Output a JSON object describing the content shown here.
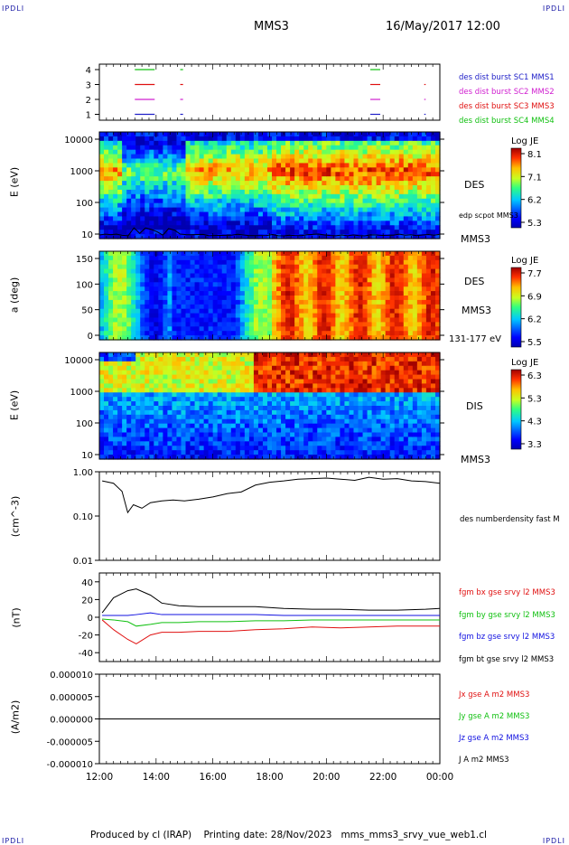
{
  "header": {
    "corner_label": "IPDLI",
    "spacecraft": "MMS3",
    "datetime": "16/May/2017 12:00"
  },
  "footer": {
    "produced_by": "Produced by cl (IRAP)",
    "printing_date": "Printing date: 28/Nov/2023",
    "filename": "mms_mms3_srvy_vue_web1.cl"
  },
  "colors": {
    "mms1": "#2020c8",
    "mms2": "#d020d0",
    "mms3": "#e01010",
    "mms4": "#10c010",
    "bx": "#e01010",
    "by": "#10c010",
    "bz": "#1010e0",
    "bt": "#000000"
  },
  "chart_data": [
    {
      "type": "scatter",
      "name_key": "burst",
      "yticks": [
        "4",
        "3",
        "2",
        "1"
      ],
      "legend": [
        "des dist burst SC1 MMS1",
        "des dist burst SC2 MMS2",
        "des dist burst SC3 MMS3",
        "des dist burst SC4 MMS4"
      ],
      "intervals": [
        {
          "sc": 4,
          "ranges": [
            [
              13.25,
              13.95
            ],
            [
              14.85,
              14.95
            ],
            [
              21.55,
              21.9
            ]
          ]
        },
        {
          "sc": 3,
          "ranges": [
            [
              13.25,
              13.95
            ],
            [
              14.85,
              14.95
            ],
            [
              21.55,
              21.9
            ],
            [
              23.45,
              23.5
            ]
          ]
        },
        {
          "sc": 2,
          "ranges": [
            [
              13.25,
              13.95
            ],
            [
              14.85,
              14.95
            ],
            [
              21.55,
              21.9
            ],
            [
              23.45,
              23.5
            ]
          ]
        },
        {
          "sc": 1,
          "ranges": [
            [
              13.25,
              13.95
            ],
            [
              14.85,
              14.95
            ],
            [
              21.55,
              21.9
            ],
            [
              23.45,
              23.5
            ]
          ]
        }
      ]
    },
    {
      "type": "heatmap",
      "ylabel": "E (eV)",
      "yticks": [
        "10000",
        "1000",
        "100",
        "10"
      ],
      "label": "DES",
      "sublabel": "edp scpot MMS3",
      "bottom_label": "MMS3",
      "colorbar": {
        "title": "Log JE",
        "ticks": [
          "8.1",
          "7.1",
          "6.2",
          "5.3"
        ]
      }
    },
    {
      "type": "heatmap",
      "ylabel": "a (deg)",
      "yticks": [
        "150",
        "100",
        "50",
        "0"
      ],
      "label": "DES",
      "sublabel": "MMS3",
      "bottom_label": "131-177 eV",
      "colorbar": {
        "title": "Log JE",
        "ticks": [
          "7.7",
          "6.9",
          "6.2",
          "5.5"
        ]
      }
    },
    {
      "type": "heatmap",
      "ylabel": "E (eV)",
      "yticks": [
        "10000",
        "1000",
        "100",
        "10"
      ],
      "label": "DIS",
      "bottom_label": "MMS3",
      "colorbar": {
        "title": "Log JE",
        "ticks": [
          "6.3",
          "5.3",
          "4.3",
          "3.3"
        ]
      }
    },
    {
      "type": "line",
      "ylabel": "(cm^-3)",
      "yticks": [
        "1.00",
        "0.10",
        "0.01"
      ],
      "ylim": [
        0.01,
        1.0
      ],
      "yscale": "log",
      "legend": [
        "des numberdensity fast M"
      ],
      "series": [
        {
          "x": [
            12.1,
            12.5,
            12.8,
            13.0,
            13.2,
            13.5,
            13.8,
            14.2,
            14.6,
            15.0,
            15.5,
            16.0,
            16.5,
            17.0,
            17.5,
            18.0,
            18.5,
            19.0,
            19.5,
            20.0,
            20.5,
            21.0,
            21.5,
            22.0,
            22.5,
            23.0,
            23.5,
            24.0
          ],
          "values": [
            0.62,
            0.55,
            0.36,
            0.12,
            0.18,
            0.15,
            0.2,
            0.22,
            0.23,
            0.22,
            0.24,
            0.27,
            0.32,
            0.35,
            0.5,
            0.58,
            0.62,
            0.68,
            0.7,
            0.72,
            0.68,
            0.64,
            0.75,
            0.68,
            0.7,
            0.62,
            0.6,
            0.55
          ]
        }
      ]
    },
    {
      "type": "line",
      "ylabel": "(nT)",
      "yticks": [
        "40",
        "20",
        "0",
        "-20",
        "-40"
      ],
      "ylim": [
        -50,
        50
      ],
      "legend": [
        "fgm bx gse srvy l2 MMS3",
        "fgm by gse srvy l2 MMS3",
        "fgm bz gse srvy l2 MMS3",
        "fgm bt gse srvy l2 MMS3"
      ],
      "series": [
        {
          "name": "fgm bx gse srvy l2 MMS3",
          "x": [
            12.1,
            12.5,
            13.0,
            13.3,
            13.8,
            14.2,
            14.8,
            15.5,
            16.5,
            17.5,
            18.5,
            19.5,
            20.5,
            21.5,
            22.5,
            23.5,
            24.0
          ],
          "values": [
            -3,
            -14,
            -25,
            -30,
            -20,
            -17,
            -17,
            -16,
            -16,
            -14,
            -13,
            -11,
            -12,
            -11,
            -10,
            -10,
            -10
          ]
        },
        {
          "name": "fgm by gse srvy l2 MMS3",
          "x": [
            12.1,
            12.5,
            13.0,
            13.3,
            13.8,
            14.2,
            14.8,
            15.5,
            16.5,
            17.5,
            18.5,
            19.5,
            20.5,
            21.5,
            22.5,
            23.5,
            24.0
          ],
          "values": [
            -2,
            -3,
            -5,
            -10,
            -8,
            -6,
            -6,
            -5,
            -5,
            -4,
            -4,
            -3,
            -3,
            -3,
            -3,
            -3,
            -3
          ]
        },
        {
          "name": "fgm bz gse srvy l2 MMS3",
          "x": [
            12.1,
            12.5,
            13.0,
            13.3,
            13.8,
            14.2,
            14.8,
            15.5,
            16.5,
            17.5,
            18.5,
            19.5,
            20.5,
            21.5,
            22.5,
            23.5,
            24.0
          ],
          "values": [
            2,
            2,
            2,
            3,
            5,
            3,
            3,
            3,
            3,
            3,
            2,
            2,
            2,
            2,
            2,
            2,
            2
          ]
        },
        {
          "name": "fgm bt gse srvy l2 MMS3",
          "x": [
            12.1,
            12.5,
            13.0,
            13.3,
            13.8,
            14.2,
            14.8,
            15.5,
            16.5,
            17.5,
            18.5,
            19.5,
            20.5,
            21.5,
            22.5,
            23.5,
            24.0
          ],
          "values": [
            5,
            22,
            30,
            32,
            25,
            16,
            13,
            12,
            12,
            12,
            10,
            9,
            9,
            8,
            8,
            9,
            10
          ]
        }
      ]
    },
    {
      "type": "line",
      "ylabel": "(A/m2)",
      "yticks": [
        "0.000010",
        "0.000005",
        "0.000000",
        "-0.000005",
        "-0.000010"
      ],
      "ylim": [
        -1e-05,
        1e-05
      ],
      "legend": [
        "Jx gse A m2 MMS3",
        "Jy gse A m2 MMS3",
        "Jz gse A m2 MMS3",
        "J A m2 MMS3"
      ],
      "series": [
        {
          "name": "J A m2 MMS3",
          "x": [
            12.0,
            24.0
          ],
          "values": [
            0,
            0
          ]
        }
      ]
    }
  ],
  "xaxis": {
    "ticks": [
      "12:00",
      "14:00",
      "16:00",
      "18:00",
      "20:00",
      "22:00",
      "00:00"
    ],
    "range": [
      12,
      24
    ]
  }
}
